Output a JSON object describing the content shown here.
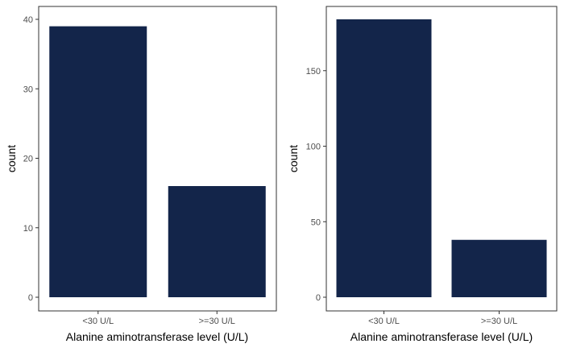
{
  "bar_color": "#13254a",
  "chart_data": [
    {
      "type": "bar",
      "categories": [
        "<30 U/L",
        ">=30 U/L"
      ],
      "values": [
        39,
        16
      ],
      "xlabel": "Alanine aminotransferase level (U/L)",
      "ylabel": "count",
      "ylim": [
        0,
        40
      ],
      "yticks": [
        0,
        10,
        20,
        30,
        40
      ],
      "grid": false
    },
    {
      "type": "bar",
      "categories": [
        "<30 U/L",
        ">=30 U/L"
      ],
      "values": [
        184,
        38
      ],
      "xlabel": "Alanine aminotransferase level (U/L)",
      "ylabel": "count",
      "ylim": [
        0,
        184
      ],
      "yticks": [
        0,
        50,
        100,
        150
      ],
      "grid": false
    }
  ]
}
